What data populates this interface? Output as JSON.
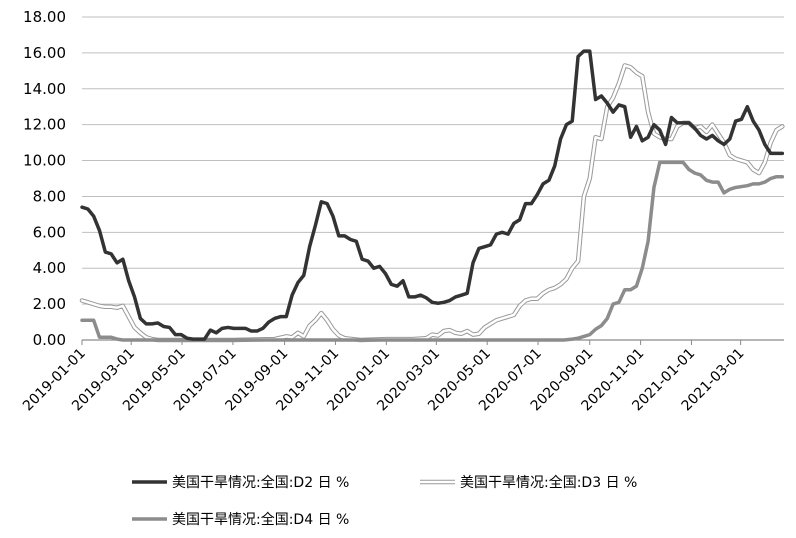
{
  "chart_data": {
    "type": "line",
    "title": "",
    "xlabel": "",
    "ylabel": "",
    "ylim": [
      0,
      18
    ],
    "yticks": [
      "0.00",
      "2.00",
      "4.00",
      "6.00",
      "8.00",
      "10.00",
      "12.00",
      "14.00",
      "16.00",
      "18.00"
    ],
    "xticks": [
      "2019-01-01",
      "2019-03-01",
      "2019-05-01",
      "2019-07-01",
      "2019-09-01",
      "2019-11-01",
      "2020-01-01",
      "2020-03-01",
      "2020-05-01",
      "2020-07-01",
      "2020-09-01",
      "2020-11-01",
      "2021-01-01",
      "2021-03-01"
    ],
    "xlim": [
      "2019-01-01",
      "2021-04-22"
    ],
    "grid": "horizontal",
    "legend_position": "bottom",
    "series": [
      {
        "name": "美国干旱情况:全国:D2 日 %",
        "color": "#333333",
        "style": "solid",
        "points": [
          [
            "2019-01-01",
            7.4
          ],
          [
            "2019-01-08",
            7.3
          ],
          [
            "2019-01-15",
            6.9
          ],
          [
            "2019-01-22",
            6.1
          ],
          [
            "2019-01-29",
            4.9
          ],
          [
            "2019-02-05",
            4.8
          ],
          [
            "2019-02-12",
            4.3
          ],
          [
            "2019-02-19",
            4.5
          ],
          [
            "2019-02-26",
            3.3
          ],
          [
            "2019-03-05",
            2.4
          ],
          [
            "2019-03-12",
            1.2
          ],
          [
            "2019-03-19",
            0.9
          ],
          [
            "2019-03-26",
            0.9
          ],
          [
            "2019-04-02",
            0.95
          ],
          [
            "2019-04-09",
            0.75
          ],
          [
            "2019-04-16",
            0.7
          ],
          [
            "2019-04-23",
            0.3
          ],
          [
            "2019-04-30",
            0.3
          ],
          [
            "2019-05-07",
            0.1
          ],
          [
            "2019-05-14",
            0.05
          ],
          [
            "2019-05-21",
            0.05
          ],
          [
            "2019-05-28",
            0.05
          ],
          [
            "2019-06-04",
            0.55
          ],
          [
            "2019-06-11",
            0.4
          ],
          [
            "2019-06-18",
            0.65
          ],
          [
            "2019-06-25",
            0.7
          ],
          [
            "2019-07-02",
            0.65
          ],
          [
            "2019-07-09",
            0.65
          ],
          [
            "2019-07-16",
            0.65
          ],
          [
            "2019-07-23",
            0.5
          ],
          [
            "2019-07-30",
            0.5
          ],
          [
            "2019-08-06",
            0.65
          ],
          [
            "2019-08-13",
            1.0
          ],
          [
            "2019-08-20",
            1.2
          ],
          [
            "2019-08-27",
            1.3
          ],
          [
            "2019-09-03",
            1.3
          ],
          [
            "2019-09-10",
            2.5
          ],
          [
            "2019-09-17",
            3.2
          ],
          [
            "2019-09-24",
            3.6
          ],
          [
            "2019-10-01",
            5.2
          ],
          [
            "2019-10-08",
            6.4
          ],
          [
            "2019-10-15",
            7.7
          ],
          [
            "2019-10-22",
            7.6
          ],
          [
            "2019-10-29",
            6.9
          ],
          [
            "2019-11-05",
            5.8
          ],
          [
            "2019-11-12",
            5.8
          ],
          [
            "2019-11-19",
            5.6
          ],
          [
            "2019-11-26",
            5.5
          ],
          [
            "2019-12-03",
            4.5
          ],
          [
            "2019-12-10",
            4.4
          ],
          [
            "2019-12-17",
            4.0
          ],
          [
            "2019-12-24",
            4.1
          ],
          [
            "2019-12-31",
            3.7
          ],
          [
            "2020-01-07",
            3.1
          ],
          [
            "2020-01-14",
            3.0
          ],
          [
            "2020-01-21",
            3.3
          ],
          [
            "2020-01-28",
            2.4
          ],
          [
            "2020-02-04",
            2.4
          ],
          [
            "2020-02-11",
            2.5
          ],
          [
            "2020-02-18",
            2.35
          ],
          [
            "2020-02-25",
            2.1
          ],
          [
            "2020-03-03",
            2.05
          ],
          [
            "2020-03-10",
            2.1
          ],
          [
            "2020-03-17",
            2.2
          ],
          [
            "2020-03-24",
            2.4
          ],
          [
            "2020-03-31",
            2.5
          ],
          [
            "2020-04-07",
            2.6
          ],
          [
            "2020-04-14",
            4.3
          ],
          [
            "2020-04-21",
            5.1
          ],
          [
            "2020-04-28",
            5.2
          ],
          [
            "2020-05-05",
            5.3
          ],
          [
            "2020-05-12",
            5.9
          ],
          [
            "2020-05-19",
            6.0
          ],
          [
            "2020-05-26",
            5.9
          ],
          [
            "2020-06-02",
            6.5
          ],
          [
            "2020-06-09",
            6.7
          ],
          [
            "2020-06-16",
            7.6
          ],
          [
            "2020-06-23",
            7.6
          ],
          [
            "2020-06-30",
            8.1
          ],
          [
            "2020-07-07",
            8.7
          ],
          [
            "2020-07-14",
            8.9
          ],
          [
            "2020-07-21",
            9.7
          ],
          [
            "2020-07-28",
            11.2
          ],
          [
            "2020-08-04",
            12.0
          ],
          [
            "2020-08-11",
            12.2
          ],
          [
            "2020-08-18",
            15.8
          ],
          [
            "2020-08-25",
            16.1
          ],
          [
            "2020-09-01",
            16.1
          ],
          [
            "2020-09-08",
            13.4
          ],
          [
            "2020-09-15",
            13.6
          ],
          [
            "2020-09-22",
            13.2
          ],
          [
            "2020-09-29",
            12.7
          ],
          [
            "2020-10-06",
            13.1
          ],
          [
            "2020-10-13",
            13.0
          ],
          [
            "2020-10-20",
            11.3
          ],
          [
            "2020-10-27",
            11.9
          ],
          [
            "2020-11-03",
            11.1
          ],
          [
            "2020-11-10",
            11.3
          ],
          [
            "2020-11-17",
            12.0
          ],
          [
            "2020-11-24",
            11.7
          ],
          [
            "2020-12-01",
            10.9
          ],
          [
            "2020-12-08",
            12.4
          ],
          [
            "2020-12-15",
            12.1
          ],
          [
            "2020-12-22",
            12.1
          ],
          [
            "2020-12-29",
            12.1
          ],
          [
            "2021-01-05",
            11.8
          ],
          [
            "2021-01-12",
            11.4
          ],
          [
            "2021-01-19",
            11.2
          ],
          [
            "2021-01-26",
            11.4
          ],
          [
            "2021-02-02",
            11.1
          ],
          [
            "2021-02-09",
            10.9
          ],
          [
            "2021-02-16",
            11.2
          ],
          [
            "2021-02-23",
            12.2
          ],
          [
            "2021-03-02",
            12.3
          ],
          [
            "2021-03-09",
            13.0
          ],
          [
            "2021-03-16",
            12.2
          ],
          [
            "2021-03-23",
            11.7
          ],
          [
            "2021-03-30",
            10.9
          ],
          [
            "2021-04-06",
            10.4
          ],
          [
            "2021-04-13",
            10.4
          ],
          [
            "2021-04-20",
            10.4
          ]
        ]
      },
      {
        "name": "美国干旱情况:全国:D3 日 %",
        "color": "#999999",
        "style": "double-outline",
        "points": [
          [
            "2019-01-01",
            2.2
          ],
          [
            "2019-01-08",
            2.1
          ],
          [
            "2019-01-15",
            2.0
          ],
          [
            "2019-01-22",
            1.9
          ],
          [
            "2019-01-29",
            1.85
          ],
          [
            "2019-02-05",
            1.85
          ],
          [
            "2019-02-12",
            1.8
          ],
          [
            "2019-02-19",
            1.9
          ],
          [
            "2019-02-26",
            1.3
          ],
          [
            "2019-03-05",
            0.7
          ],
          [
            "2019-03-12",
            0.4
          ],
          [
            "2019-03-19",
            0.15
          ],
          [
            "2019-03-26",
            0.05
          ],
          [
            "2019-04-02",
            0.0
          ],
          [
            "2019-05-01",
            0.0
          ],
          [
            "2019-07-01",
            0.0
          ],
          [
            "2019-08-20",
            0.05
          ],
          [
            "2019-09-03",
            0.2
          ],
          [
            "2019-09-10",
            0.15
          ],
          [
            "2019-09-17",
            0.4
          ],
          [
            "2019-09-24",
            0.2
          ],
          [
            "2019-10-01",
            0.8
          ],
          [
            "2019-10-08",
            1.1
          ],
          [
            "2019-10-15",
            1.5
          ],
          [
            "2019-10-22",
            1.1
          ],
          [
            "2019-10-29",
            0.6
          ],
          [
            "2019-11-05",
            0.25
          ],
          [
            "2019-11-12",
            0.1
          ],
          [
            "2019-12-01",
            0.0
          ],
          [
            "2020-01-01",
            0.05
          ],
          [
            "2020-02-01",
            0.05
          ],
          [
            "2020-02-18",
            0.1
          ],
          [
            "2020-02-25",
            0.3
          ],
          [
            "2020-03-03",
            0.25
          ],
          [
            "2020-03-10",
            0.5
          ],
          [
            "2020-03-17",
            0.55
          ],
          [
            "2020-03-24",
            0.4
          ],
          [
            "2020-03-31",
            0.35
          ],
          [
            "2020-04-07",
            0.5
          ],
          [
            "2020-04-14",
            0.3
          ],
          [
            "2020-04-21",
            0.35
          ],
          [
            "2020-04-28",
            0.7
          ],
          [
            "2020-05-05",
            0.9
          ],
          [
            "2020-05-12",
            1.1
          ],
          [
            "2020-05-19",
            1.2
          ],
          [
            "2020-05-26",
            1.3
          ],
          [
            "2020-06-02",
            1.4
          ],
          [
            "2020-06-09",
            1.9
          ],
          [
            "2020-06-16",
            2.2
          ],
          [
            "2020-06-23",
            2.3
          ],
          [
            "2020-06-30",
            2.3
          ],
          [
            "2020-07-07",
            2.6
          ],
          [
            "2020-07-14",
            2.8
          ],
          [
            "2020-07-21",
            2.9
          ],
          [
            "2020-07-28",
            3.1
          ],
          [
            "2020-08-04",
            3.4
          ],
          [
            "2020-08-11",
            4.0
          ],
          [
            "2020-08-18",
            4.4
          ],
          [
            "2020-08-25",
            8.0
          ],
          [
            "2020-09-01",
            9.0
          ],
          [
            "2020-09-08",
            11.3
          ],
          [
            "2020-09-15",
            11.2
          ],
          [
            "2020-09-22",
            13.0
          ],
          [
            "2020-09-29",
            13.5
          ],
          [
            "2020-10-06",
            14.3
          ],
          [
            "2020-10-13",
            15.3
          ],
          [
            "2020-10-20",
            15.2
          ],
          [
            "2020-10-27",
            14.9
          ],
          [
            "2020-11-03",
            14.7
          ],
          [
            "2020-11-10",
            12.7
          ],
          [
            "2020-11-17",
            11.5
          ],
          [
            "2020-11-24",
            11.3
          ],
          [
            "2020-12-01",
            11.2
          ],
          [
            "2020-12-08",
            11.2
          ],
          [
            "2020-12-15",
            11.9
          ],
          [
            "2020-12-22",
            12.1
          ],
          [
            "2020-12-29",
            12.1
          ],
          [
            "2021-01-05",
            11.8
          ],
          [
            "2021-01-12",
            11.9
          ],
          [
            "2021-01-19",
            11.6
          ],
          [
            "2021-01-26",
            12.0
          ],
          [
            "2021-02-02",
            11.5
          ],
          [
            "2021-02-09",
            11.0
          ],
          [
            "2021-02-16",
            10.3
          ],
          [
            "2021-02-23",
            10.1
          ],
          [
            "2021-03-02",
            10.0
          ],
          [
            "2021-03-09",
            9.9
          ],
          [
            "2021-03-16",
            9.5
          ],
          [
            "2021-03-23",
            9.3
          ],
          [
            "2021-03-30",
            9.9
          ],
          [
            "2021-04-06",
            11.0
          ],
          [
            "2021-04-13",
            11.7
          ],
          [
            "2021-04-20",
            11.9
          ]
        ]
      },
      {
        "name": "美国干旱情况:全国:D4 日 %",
        "color": "#8c8c8c",
        "style": "solid",
        "points": [
          [
            "2019-01-01",
            1.1
          ],
          [
            "2019-01-08",
            1.1
          ],
          [
            "2019-01-15",
            1.1
          ],
          [
            "2019-01-22",
            0.15
          ],
          [
            "2019-01-29",
            0.15
          ],
          [
            "2019-02-05",
            0.15
          ],
          [
            "2019-02-12",
            0.05
          ],
          [
            "2019-02-19",
            0.0
          ],
          [
            "2020-08-01",
            0.0
          ],
          [
            "2020-08-11",
            0.05
          ],
          [
            "2020-08-18",
            0.1
          ],
          [
            "2020-08-25",
            0.2
          ],
          [
            "2020-09-01",
            0.3
          ],
          [
            "2020-09-08",
            0.6
          ],
          [
            "2020-09-15",
            0.8
          ],
          [
            "2020-09-22",
            1.2
          ],
          [
            "2020-09-29",
            2.0
          ],
          [
            "2020-10-06",
            2.1
          ],
          [
            "2020-10-13",
            2.8
          ],
          [
            "2020-10-20",
            2.8
          ],
          [
            "2020-10-27",
            3.0
          ],
          [
            "2020-11-03",
            4.0
          ],
          [
            "2020-11-10",
            5.5
          ],
          [
            "2020-11-17",
            8.5
          ],
          [
            "2020-11-24",
            9.9
          ],
          [
            "2020-12-01",
            9.9
          ],
          [
            "2020-12-08",
            9.9
          ],
          [
            "2020-12-15",
            9.9
          ],
          [
            "2020-12-22",
            9.9
          ],
          [
            "2020-12-29",
            9.5
          ],
          [
            "2021-01-05",
            9.3
          ],
          [
            "2021-01-12",
            9.2
          ],
          [
            "2021-01-19",
            8.9
          ],
          [
            "2021-01-26",
            8.8
          ],
          [
            "2021-02-02",
            8.8
          ],
          [
            "2021-02-09",
            8.2
          ],
          [
            "2021-02-16",
            8.4
          ],
          [
            "2021-02-23",
            8.5
          ],
          [
            "2021-03-02",
            8.55
          ],
          [
            "2021-03-09",
            8.6
          ],
          [
            "2021-03-16",
            8.7
          ],
          [
            "2021-03-23",
            8.7
          ],
          [
            "2021-03-30",
            8.8
          ],
          [
            "2021-04-06",
            9.0
          ],
          [
            "2021-04-13",
            9.1
          ],
          [
            "2021-04-20",
            9.1
          ]
        ]
      }
    ]
  }
}
